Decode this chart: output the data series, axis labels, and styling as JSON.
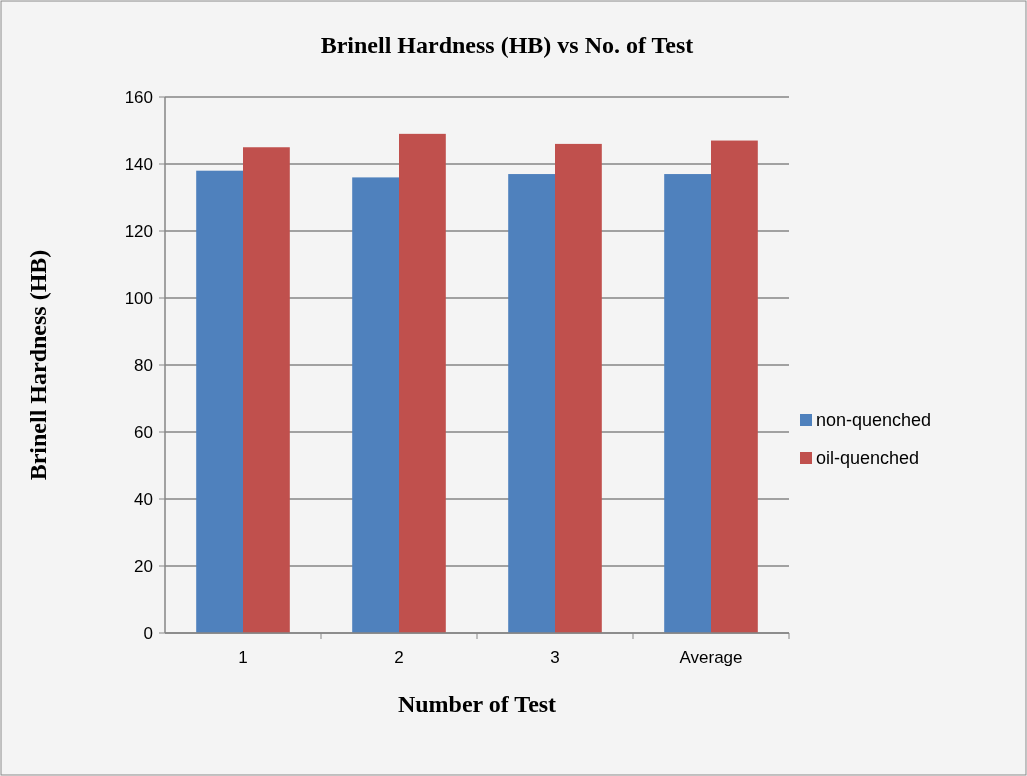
{
  "chart_data": {
    "type": "bar",
    "title": "Brinell Hardness (HB) vs No. of Test",
    "xlabel": "Number of Test",
    "ylabel": "Brinell Hardness (HB)",
    "categories": [
      "1",
      "2",
      "3",
      "Average"
    ],
    "series": [
      {
        "name": "non-quenched",
        "color": "#4f81bd",
        "values": [
          138,
          136,
          137,
          137
        ]
      },
      {
        "name": "oil-quenched",
        "color": "#c0504d",
        "values": [
          145,
          149,
          146,
          147
        ]
      }
    ],
    "ylim": [
      0,
      160
    ],
    "yticks": [
      0,
      20,
      40,
      60,
      80,
      100,
      120,
      140,
      160
    ],
    "grid": "y",
    "legend": "right"
  }
}
